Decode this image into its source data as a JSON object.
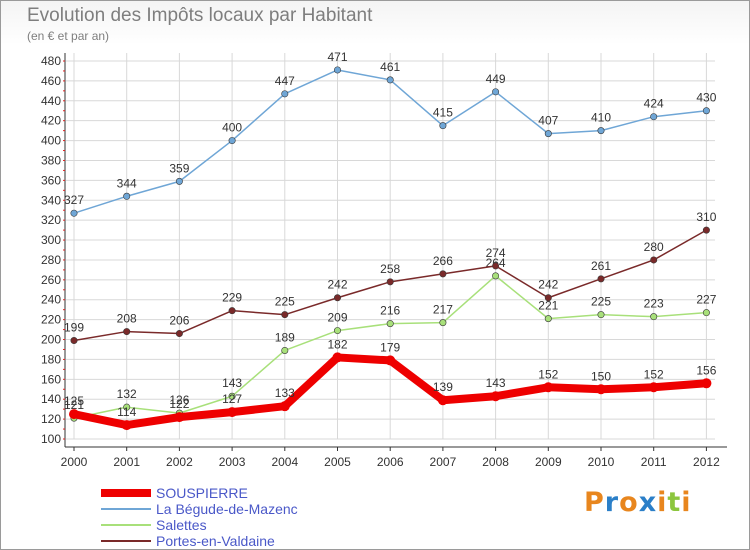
{
  "title": "Evolution des Impôts locaux par Habitant",
  "subtitle": "(en € et par an)",
  "logo": {
    "text": "Proxiti",
    "letters": [
      {
        "ch": "P",
        "color": "#e8861e"
      },
      {
        "ch": "r",
        "color": "#2b7fc8"
      },
      {
        "ch": "o",
        "color": "#e8861e"
      },
      {
        "ch": "x",
        "color": "#2b7fc8"
      },
      {
        "ch": "i",
        "color": "#e8861e"
      },
      {
        "ch": "t",
        "color": "#8cc63e"
      },
      {
        "ch": "i",
        "color": "#e8861e"
      }
    ]
  },
  "chart_data": {
    "type": "line",
    "title": "Evolution des Impôts locaux par Habitant",
    "subtitle": "(en € et par an)",
    "xlabel": "",
    "ylabel": "",
    "categories": [
      "2000",
      "2001",
      "2002",
      "2003",
      "2004",
      "2005",
      "2006",
      "2007",
      "2008",
      "2009",
      "2010",
      "2011",
      "2012"
    ],
    "ylim": [
      100,
      480
    ],
    "yticks": [
      100,
      120,
      140,
      160,
      180,
      200,
      220,
      240,
      260,
      280,
      300,
      320,
      340,
      360,
      380,
      400,
      420,
      440,
      460,
      480
    ],
    "grid": true,
    "legend_position": "bottom-left",
    "series": [
      {
        "name": "SOUSPIERRE",
        "color": "#ee0000",
        "emphasis": true,
        "values": [
          125,
          114,
          122,
          127,
          133,
          182,
          179,
          139,
          143,
          152,
          150,
          152,
          156
        ]
      },
      {
        "name": "La Bégude-de-Mazenc",
        "color": "#6fa6d6",
        "emphasis": false,
        "values": [
          327,
          344,
          359,
          400,
          447,
          471,
          461,
          415,
          449,
          407,
          410,
          424,
          430
        ]
      },
      {
        "name": "Salettes",
        "color": "#a8e07a",
        "emphasis": false,
        "values": [
          121,
          132,
          126,
          143,
          189,
          209,
          216,
          217,
          264,
          221,
          225,
          223,
          227
        ]
      },
      {
        "name": "Portes-en-Valdaine",
        "color": "#7a2a2a",
        "emphasis": false,
        "values": [
          199,
          208,
          206,
          229,
          225,
          242,
          258,
          266,
          274,
          242,
          261,
          280,
          310
        ]
      }
    ]
  }
}
